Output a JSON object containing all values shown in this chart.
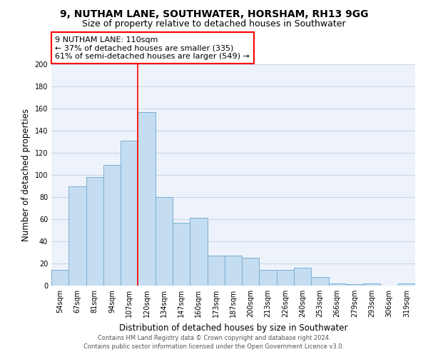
{
  "title1": "9, NUTHAM LANE, SOUTHWATER, HORSHAM, RH13 9GG",
  "title2": "Size of property relative to detached houses in Southwater",
  "xlabel": "Distribution of detached houses by size in Southwater",
  "ylabel": "Number of detached properties",
  "categories": [
    "54sqm",
    "67sqm",
    "81sqm",
    "94sqm",
    "107sqm",
    "120sqm",
    "134sqm",
    "147sqm",
    "160sqm",
    "173sqm",
    "187sqm",
    "200sqm",
    "213sqm",
    "226sqm",
    "240sqm",
    "253sqm",
    "266sqm",
    "279sqm",
    "293sqm",
    "306sqm",
    "319sqm"
  ],
  "values": [
    14,
    90,
    98,
    109,
    131,
    157,
    80,
    57,
    61,
    27,
    27,
    25,
    14,
    14,
    16,
    8,
    2,
    1,
    2,
    0,
    2
  ],
  "bar_color": "#c5ddf0",
  "bar_edge_color": "#7aafd4",
  "vline_x": 4.5,
  "vline_color": "red",
  "annotation_line1": "9 NUTHAM LANE: 110sqm",
  "annotation_line2": "← 37% of detached houses are smaller (335)",
  "annotation_line3": "61% of semi-detached houses are larger (549) →",
  "annotation_box_color": "white",
  "annotation_box_edge": "red",
  "ylim": [
    0,
    200
  ],
  "yticks": [
    0,
    20,
    40,
    60,
    80,
    100,
    120,
    140,
    160,
    180,
    200
  ],
  "grid_color": "#c8d8ea",
  "background_color": "#eef3fb",
  "footer1": "Contains HM Land Registry data © Crown copyright and database right 2024.",
  "footer2": "Contains public sector information licensed under the Open Government Licence v3.0.",
  "title1_fontsize": 10,
  "title2_fontsize": 9,
  "tick_fontsize": 7,
  "ylabel_fontsize": 8.5,
  "xlabel_fontsize": 8.5,
  "annotation_fontsize": 8,
  "footer_fontsize": 6
}
